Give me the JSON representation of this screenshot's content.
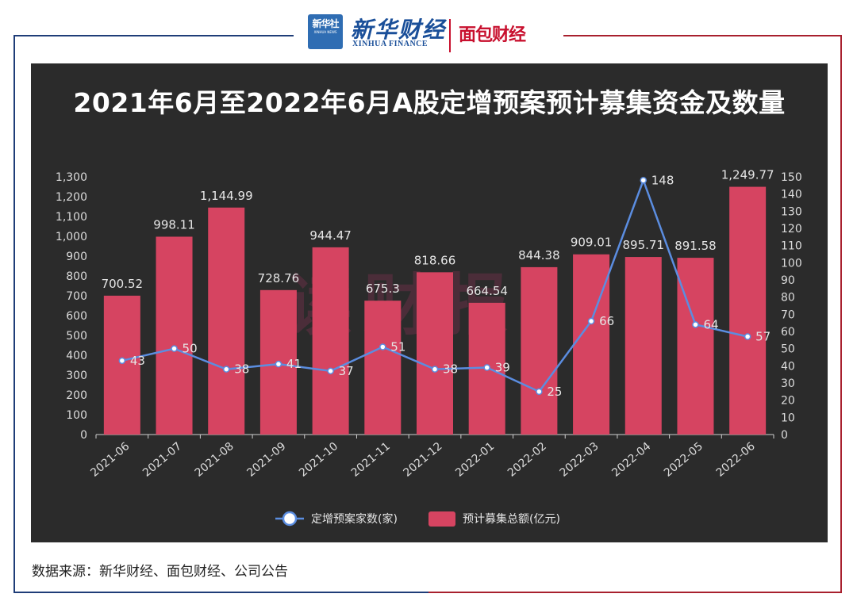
{
  "header": {
    "xinhua_badge_cn": "新华社",
    "xinhua_badge_en": "XINHUA NEWS",
    "brand_cn": "新华财经",
    "brand_en": "XINHUA FINANCE",
    "partner": "面包财经"
  },
  "watermark": "读财报",
  "source_text": "数据来源：新华财经、面包财经、公司公告",
  "colors": {
    "frame_left": "#1f3d78",
    "frame_right": "#a8202e",
    "chart_bg": "#2b2b2b",
    "bar": "#d64461",
    "line": "#5b8de0",
    "axis_text": "#dcdcdc"
  },
  "chart_data": {
    "type": "bar",
    "title": "2021年6月至2022年6月A股定增预案预计募集资金及数量",
    "categories": [
      "2021-06",
      "2021-07",
      "2021-08",
      "2021-09",
      "2021-10",
      "2021-11",
      "2021-12",
      "2022-01",
      "2022-02",
      "2022-03",
      "2022-04",
      "2022-05",
      "2022-06"
    ],
    "series": [
      {
        "name": "预计募集总额(亿元)",
        "type": "bar",
        "axis": "left",
        "values": [
          700.52,
          998.11,
          1144.99,
          728.76,
          944.47,
          675.3,
          818.66,
          664.54,
          844.38,
          909.01,
          895.71,
          891.58,
          1249.77
        ],
        "labels": [
          "700.52",
          "998.11",
          "1,144.99",
          "728.76",
          "944.47",
          "675.3",
          "818.66",
          "664.54",
          "844.38",
          "909.01",
          "895.71",
          "891.58",
          "1,249.77"
        ]
      },
      {
        "name": "定增预案家数(家)",
        "type": "line",
        "axis": "right",
        "values": [
          43,
          50,
          38,
          41,
          37,
          51,
          38,
          39,
          25,
          66,
          148,
          64,
          57
        ]
      }
    ],
    "y_left": {
      "range": [
        0,
        1300
      ],
      "ticks": [
        "0",
        "100",
        "200",
        "300",
        "400",
        "500",
        "600",
        "700",
        "800",
        "900",
        "1,000",
        "1,100",
        "1,200",
        "1,300"
      ]
    },
    "y_right": {
      "range": [
        0,
        150
      ],
      "ticks": [
        "0",
        "10",
        "20",
        "30",
        "40",
        "50",
        "60",
        "70",
        "80",
        "90",
        "100",
        "110",
        "120",
        "130",
        "140",
        "150"
      ]
    },
    "legend": {
      "position": "bottom-center",
      "items": [
        "定增预案家数(家)",
        "预计募集总额(亿元)"
      ]
    },
    "grid": false
  }
}
